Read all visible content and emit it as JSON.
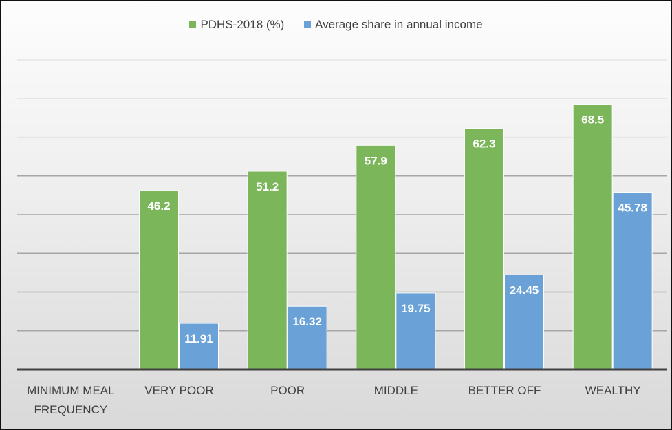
{
  "chart_data": {
    "type": "bar",
    "categories": [
      "MINIMUM MEAL FREQUENCY",
      "VERY POOR",
      "POOR",
      "MIDDLE",
      "BETTER OFF",
      "WEALTHY"
    ],
    "category_lines": [
      [
        "MINIMUM MEAL",
        "FREQUENCY"
      ],
      [
        "VERY POOR"
      ],
      [
        "POOR"
      ],
      [
        "MIDDLE"
      ],
      [
        "BETTER OFF"
      ],
      [
        "WEALTHY"
      ]
    ],
    "series": [
      {
        "name": "PDHS-2018 (%)",
        "color": "#7cb65a",
        "values": [
          null,
          46.2,
          51.2,
          57.9,
          62.3,
          68.5
        ],
        "labels": [
          "",
          "46.2",
          "51.2",
          "57.9",
          "62.3",
          "68.5"
        ]
      },
      {
        "name": "Average share in annual income",
        "color": "#6aa2d8",
        "values": [
          null,
          11.91,
          16.32,
          19.75,
          24.45,
          45.78
        ],
        "labels": [
          "",
          "11.91",
          "16.32",
          "19.75",
          "24.45",
          "45.78"
        ]
      }
    ],
    "ylim": [
      0,
      80
    ],
    "grid": true,
    "y_tick_labels_shown": false,
    "legend_position": "top"
  }
}
